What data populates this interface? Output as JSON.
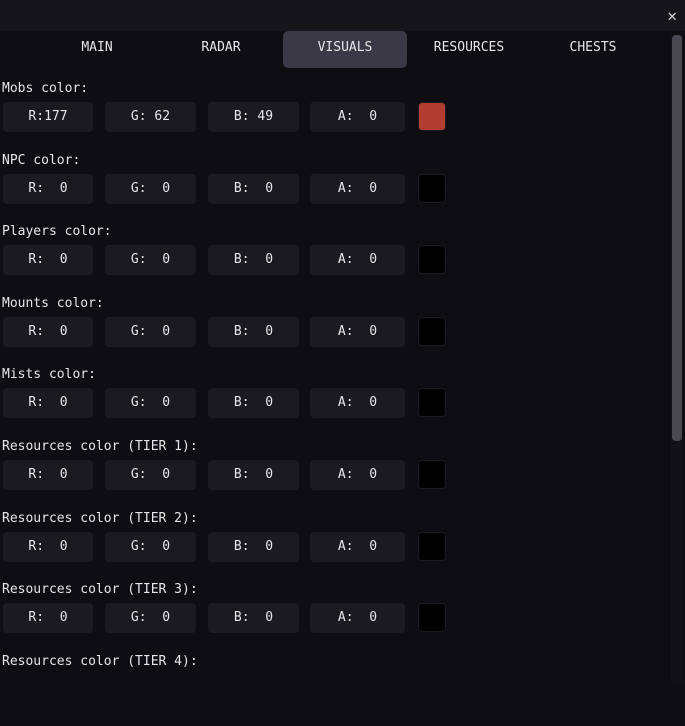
{
  "window": {
    "close_icon": "close-icon"
  },
  "tabs": [
    {
      "label": "MAIN"
    },
    {
      "label": "RADAR"
    },
    {
      "label": "VISUALS",
      "active": true
    },
    {
      "label": "RESOURCES"
    },
    {
      "label": "CHESTS"
    }
  ],
  "sections": [
    {
      "label": "Mobs color:",
      "r": "R:177",
      "g": "G: 62",
      "b": "B: 49",
      "a": "A:  0",
      "swatch": "#b13e31"
    },
    {
      "label": "NPC color:",
      "r": "R:  0",
      "g": "G:  0",
      "b": "B:  0",
      "a": "A:  0",
      "swatch": "#000000"
    },
    {
      "label": "Players color:",
      "r": "R:  0",
      "g": "G:  0",
      "b": "B:  0",
      "a": "A:  0",
      "swatch": "#000000"
    },
    {
      "label": "Mounts color:",
      "r": "R:  0",
      "g": "G:  0",
      "b": "B:  0",
      "a": "A:  0",
      "swatch": "#000000"
    },
    {
      "label": "Mists color:",
      "r": "R:  0",
      "g": "G:  0",
      "b": "B:  0",
      "a": "A:  0",
      "swatch": "#000000"
    },
    {
      "label": "Resources color (TIER 1):",
      "r": "R:  0",
      "g": "G:  0",
      "b": "B:  0",
      "a": "A:  0",
      "swatch": "#000000"
    },
    {
      "label": "Resources color (TIER 2):",
      "r": "R:  0",
      "g": "G:  0",
      "b": "B:  0",
      "a": "A:  0",
      "swatch": "#000000"
    },
    {
      "label": "Resources color (TIER 3):",
      "r": "R:  0",
      "g": "G:  0",
      "b": "B:  0",
      "a": "A:  0",
      "swatch": "#000000"
    },
    {
      "label": "Resources color (TIER 4):"
    }
  ]
}
